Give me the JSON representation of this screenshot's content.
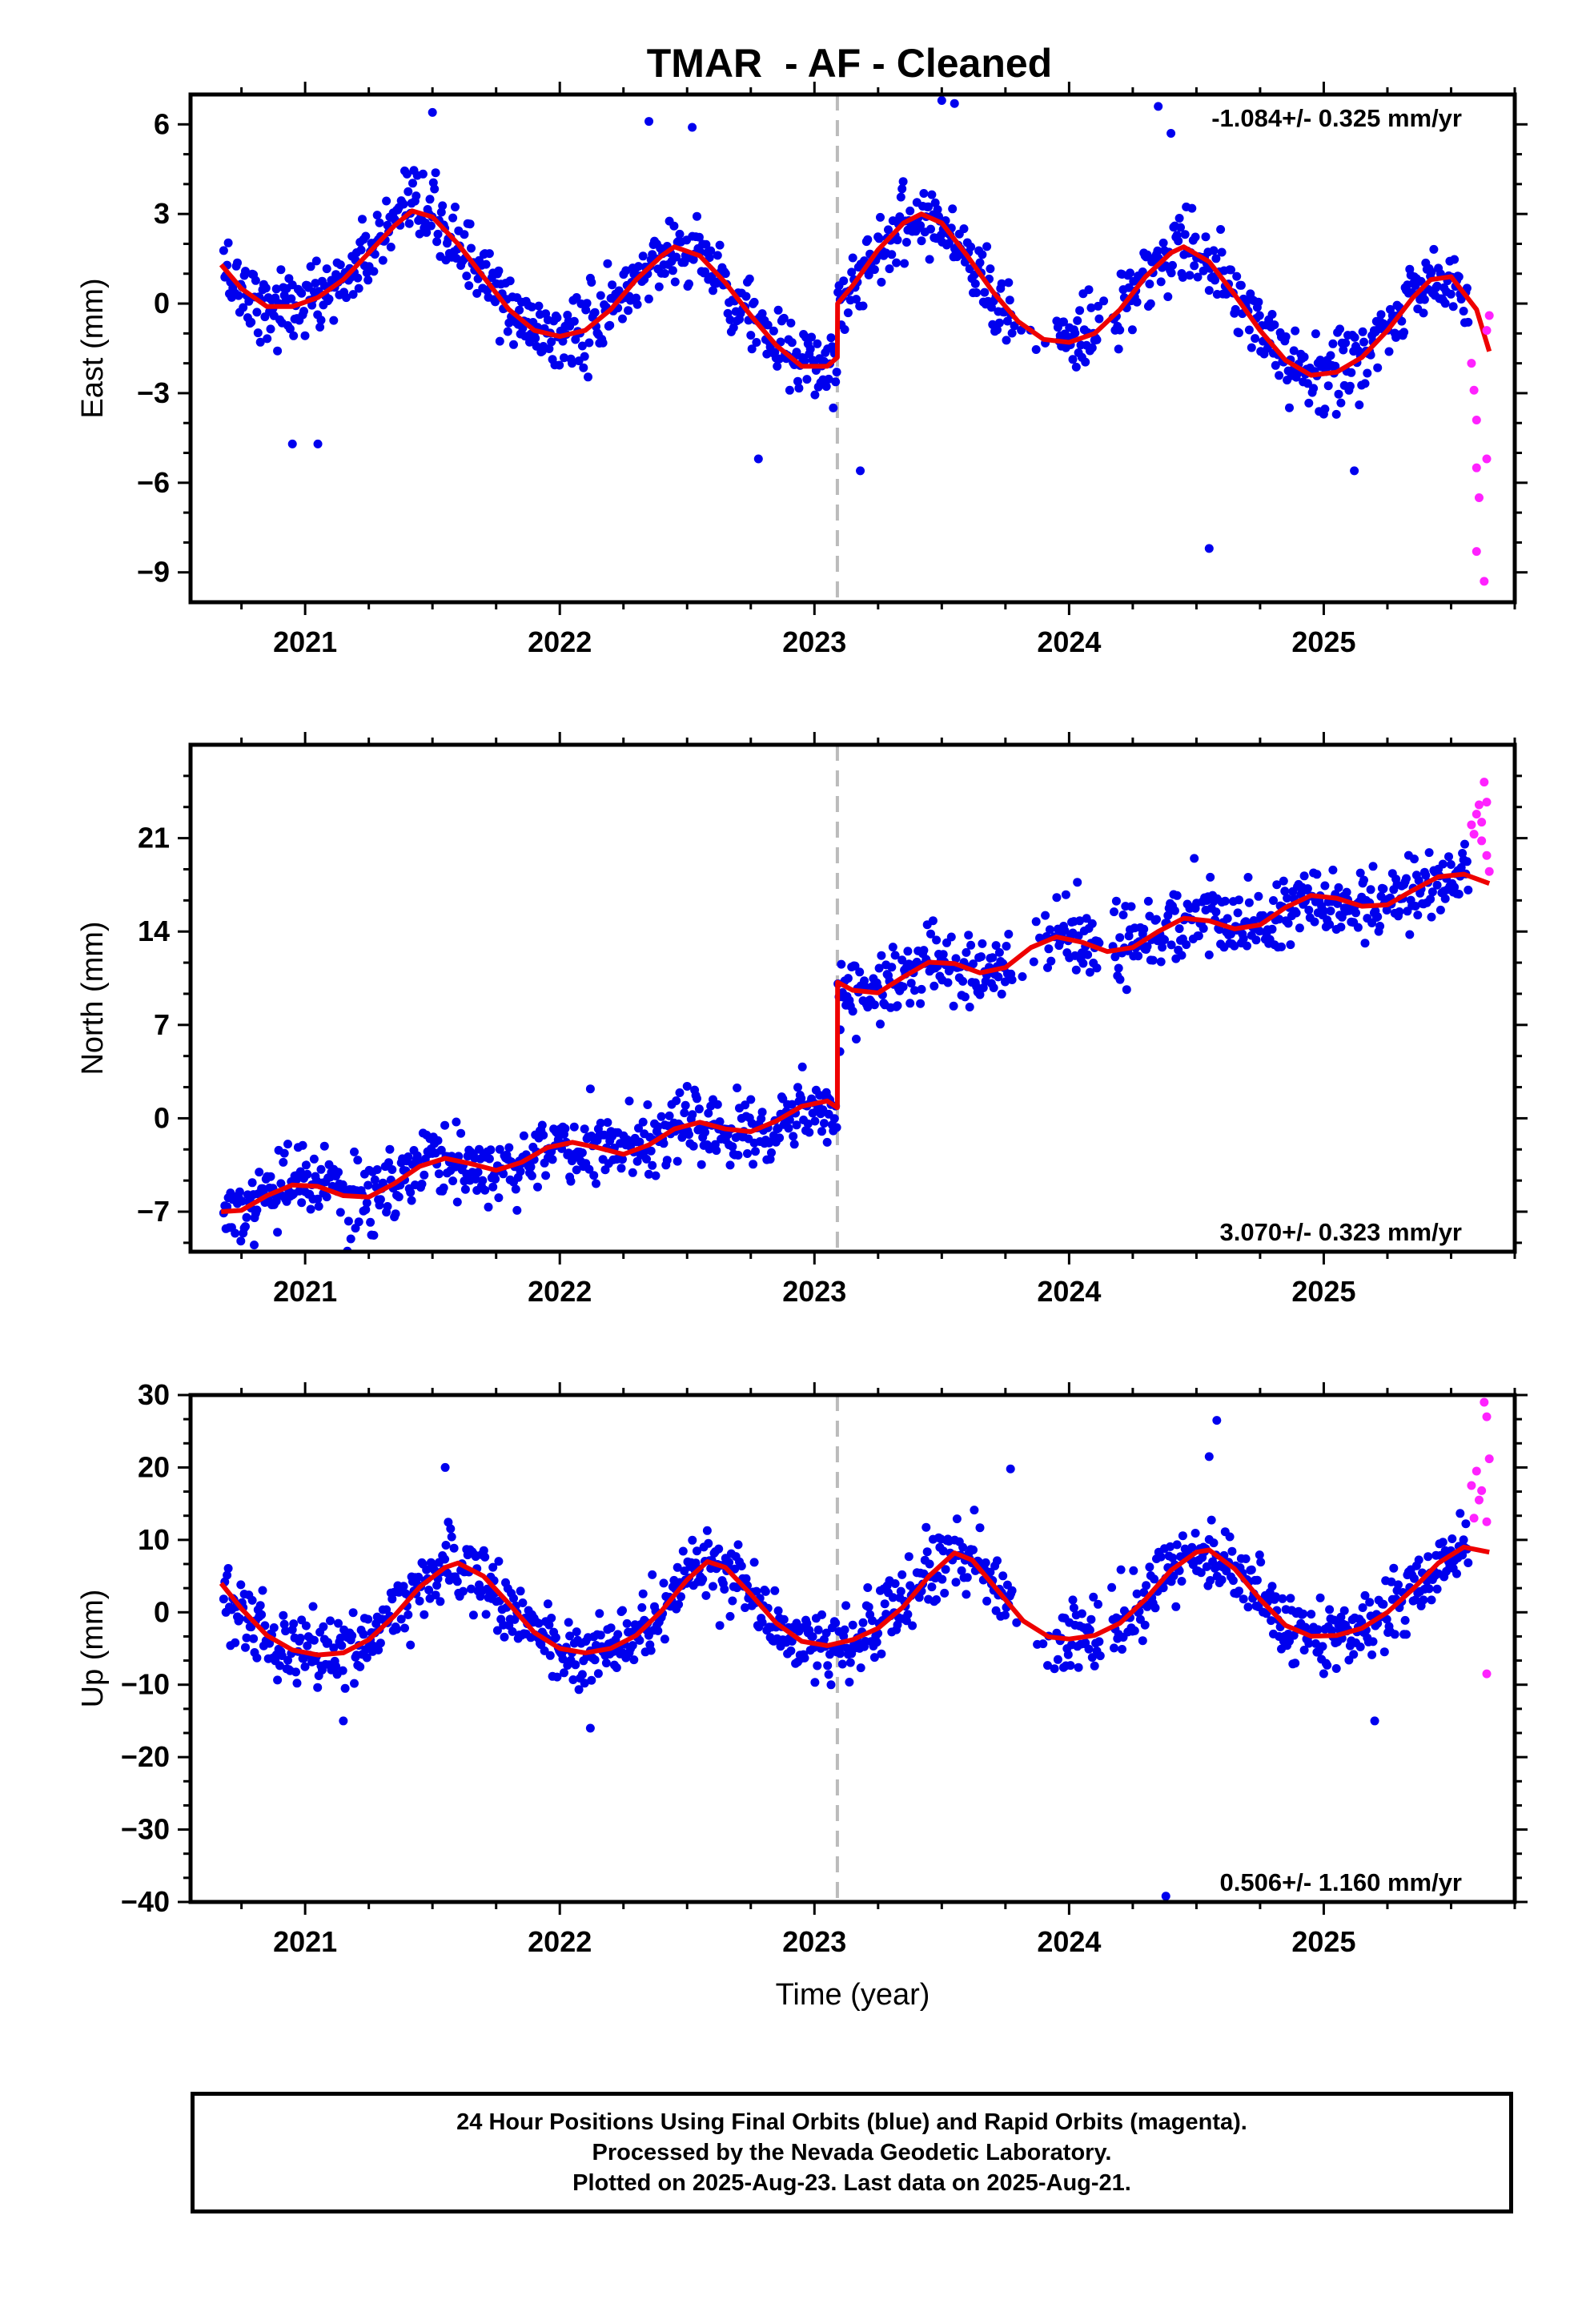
{
  "title": "TMAR  - AF - Cleaned",
  "caption": {
    "line1": "24 Hour Positions Using Final Orbits (blue) and Rapid Orbits (magenta).",
    "line2": "Processed by the Nevada Geodetic Laboratory.",
    "line3": "Plotted on 2025-Aug-23. Last data on 2025-Aug-21."
  },
  "colors": {
    "final": "#0000ee",
    "rapid": "#ff22ff",
    "model": "#ee0000",
    "event_line": "#bbbbbb"
  },
  "chart_data": [
    {
      "type": "scatter",
      "panel": "east",
      "ylabel": "East (mm)",
      "xlabel": "",
      "xlim": [
        2020.55,
        2025.75
      ],
      "ylim": [
        -10,
        7
      ],
      "xticks": [
        2021,
        2022,
        2023,
        2024,
        2025
      ],
      "xticklabels": [
        "2021",
        "2022",
        "2023",
        "2024",
        "2025"
      ],
      "yticks": [
        6,
        3,
        0,
        -3,
        -6,
        -9
      ],
      "yticklabels": [
        "6",
        "3",
        "0",
        "−3",
        "−6",
        "−9"
      ],
      "rate_text": "-1.084+/- 0.325 mm/yr",
      "rate_position": "top-right",
      "event_x": 2023.09,
      "model": [
        [
          2020.67,
          1.3
        ],
        [
          2020.75,
          0.5
        ],
        [
          2020.85,
          -0.1
        ],
        [
          2020.95,
          -0.1
        ],
        [
          2021.05,
          0.2
        ],
        [
          2021.15,
          0.8
        ],
        [
          2021.25,
          1.7
        ],
        [
          2021.35,
          2.6
        ],
        [
          2021.42,
          3.1
        ],
        [
          2021.5,
          2.9
        ],
        [
          2021.6,
          2.0
        ],
        [
          2021.7,
          0.9
        ],
        [
          2021.8,
          -0.2
        ],
        [
          2021.9,
          -0.9
        ],
        [
          2022.0,
          -1.1
        ],
        [
          2022.1,
          -0.9
        ],
        [
          2022.2,
          -0.2
        ],
        [
          2022.3,
          0.8
        ],
        [
          2022.4,
          1.6
        ],
        [
          2022.45,
          1.9
        ],
        [
          2022.55,
          1.6
        ],
        [
          2022.65,
          0.7
        ],
        [
          2022.75,
          -0.4
        ],
        [
          2022.85,
          -1.4
        ],
        [
          2022.95,
          -2.1
        ],
        [
          2023.05,
          -2.1
        ],
        [
          2023.09,
          -1.8
        ],
        [
          2023.091,
          0.0
        ],
        [
          2023.15,
          0.6
        ],
        [
          2023.25,
          1.8
        ],
        [
          2023.35,
          2.7
        ],
        [
          2023.42,
          3.0
        ],
        [
          2023.5,
          2.7
        ],
        [
          2023.6,
          1.6
        ],
        [
          2023.7,
          0.4
        ],
        [
          2023.8,
          -0.6
        ],
        [
          2023.9,
          -1.2
        ],
        [
          2024.0,
          -1.3
        ],
        [
          2024.1,
          -1.0
        ],
        [
          2024.2,
          -0.2
        ],
        [
          2024.3,
          0.9
        ],
        [
          2024.4,
          1.7
        ],
        [
          2024.45,
          1.9
        ],
        [
          2024.55,
          1.4
        ],
        [
          2024.65,
          0.3
        ],
        [
          2024.75,
          -0.9
        ],
        [
          2024.85,
          -1.9
        ],
        [
          2024.95,
          -2.4
        ],
        [
          2025.05,
          -2.3
        ],
        [
          2025.15,
          -1.8
        ],
        [
          2025.25,
          -0.9
        ],
        [
          2025.35,
          0.2
        ],
        [
          2025.42,
          0.8
        ],
        [
          2025.5,
          0.9
        ],
        [
          2025.6,
          -0.2
        ],
        [
          2025.65,
          -1.6
        ]
      ],
      "rapid": [
        [
          2025.58,
          -2.0
        ],
        [
          2025.59,
          -2.9
        ],
        [
          2025.6,
          -3.9
        ],
        [
          2025.6,
          -5.5
        ],
        [
          2025.61,
          -6.5
        ],
        [
          2025.6,
          -8.3
        ],
        [
          2025.63,
          -9.3
        ],
        [
          2025.64,
          -5.2
        ],
        [
          2025.65,
          -0.4
        ],
        [
          2025.64,
          -0.9
        ]
      ],
      "outliers": [
        [
          2021.5,
          6.4
        ],
        [
          2022.35,
          6.1
        ],
        [
          2022.52,
          5.9
        ],
        [
          2023.5,
          6.8
        ],
        [
          2023.55,
          6.7
        ],
        [
          2024.35,
          6.6
        ],
        [
          2024.4,
          5.7
        ],
        [
          2024.55,
          -8.2
        ],
        [
          2023.18,
          -5.6
        ],
        [
          2021.05,
          -4.7
        ],
        [
          2020.95,
          -4.7
        ],
        [
          2022.78,
          -5.2
        ],
        [
          2025.12,
          -5.6
        ]
      ]
    },
    {
      "type": "scatter",
      "panel": "north",
      "ylabel": "North (mm)",
      "xlabel": "",
      "xlim": [
        2020.55,
        2025.75
      ],
      "ylim": [
        -10,
        28
      ],
      "xticks": [
        2021,
        2022,
        2023,
        2024,
        2025
      ],
      "xticklabels": [
        "2021",
        "2022",
        "2023",
        "2024",
        "2025"
      ],
      "yticks": [
        21,
        14,
        7,
        0,
        -7
      ],
      "yticklabels": [
        "21",
        "14",
        "7",
        "0",
        "−7"
      ],
      "rate_text": "3.070+/- 0.323 mm/yr",
      "rate_position": "bottom-right",
      "event_x": 2023.09,
      "model": [
        [
          2020.67,
          -7.0
        ],
        [
          2020.75,
          -6.9
        ],
        [
          2020.85,
          -5.8
        ],
        [
          2020.95,
          -5.0
        ],
        [
          2021.05,
          -5.1
        ],
        [
          2021.15,
          -5.8
        ],
        [
          2021.25,
          -5.9
        ],
        [
          2021.35,
          -4.9
        ],
        [
          2021.45,
          -3.6
        ],
        [
          2021.55,
          -3.0
        ],
        [
          2021.65,
          -3.4
        ],
        [
          2021.75,
          -3.9
        ],
        [
          2021.85,
          -3.3
        ],
        [
          2021.95,
          -2.2
        ],
        [
          2022.05,
          -1.8
        ],
        [
          2022.15,
          -2.2
        ],
        [
          2022.25,
          -2.7
        ],
        [
          2022.35,
          -2.0
        ],
        [
          2022.45,
          -0.8
        ],
        [
          2022.55,
          -0.3
        ],
        [
          2022.65,
          -0.8
        ],
        [
          2022.75,
          -1.0
        ],
        [
          2022.85,
          -0.2
        ],
        [
          2022.95,
          0.9
        ],
        [
          2023.05,
          1.3
        ],
        [
          2023.09,
          0.8
        ],
        [
          2023.091,
          10.2
        ],
        [
          2023.15,
          9.6
        ],
        [
          2023.25,
          9.4
        ],
        [
          2023.35,
          10.6
        ],
        [
          2023.45,
          11.7
        ],
        [
          2023.55,
          11.6
        ],
        [
          2023.65,
          10.9
        ],
        [
          2023.75,
          11.3
        ],
        [
          2023.85,
          12.8
        ],
        [
          2023.95,
          13.6
        ],
        [
          2024.05,
          13.2
        ],
        [
          2024.15,
          12.5
        ],
        [
          2024.25,
          12.8
        ],
        [
          2024.35,
          14.0
        ],
        [
          2024.45,
          15.0
        ],
        [
          2024.55,
          14.8
        ],
        [
          2024.65,
          14.2
        ],
        [
          2024.75,
          14.5
        ],
        [
          2024.85,
          15.8
        ],
        [
          2024.95,
          16.7
        ],
        [
          2025.05,
          16.5
        ],
        [
          2025.15,
          15.9
        ],
        [
          2025.25,
          16.0
        ],
        [
          2025.35,
          17.1
        ],
        [
          2025.45,
          18.1
        ],
        [
          2025.55,
          18.3
        ],
        [
          2025.65,
          17.6
        ]
      ],
      "rapid": [
        [
          2025.58,
          22.0
        ],
        [
          2025.59,
          21.3
        ],
        [
          2025.6,
          22.8
        ],
        [
          2025.61,
          23.5
        ],
        [
          2025.62,
          22.2
        ],
        [
          2025.63,
          25.2
        ],
        [
          2025.64,
          23.7
        ],
        [
          2025.64,
          19.7
        ],
        [
          2025.65,
          18.5
        ],
        [
          2025.62,
          20.8
        ]
      ],
      "outliers": [
        [
          2020.8,
          -9.5
        ],
        [
          2023.05,
          -1.8
        ],
        [
          2023.1,
          5.0
        ],
        [
          2024.2,
          10.4
        ],
        [
          2022.5,
          2.4
        ]
      ]
    },
    {
      "type": "scatter",
      "panel": "up",
      "ylabel": "Up (mm)",
      "xlabel": "Time (year)",
      "xlim": [
        2020.55,
        2025.75
      ],
      "ylim": [
        -40,
        30
      ],
      "xticks": [
        2021,
        2022,
        2023,
        2024,
        2025
      ],
      "xticklabels": [
        "2021",
        "2022",
        "2023",
        "2024",
        "2025"
      ],
      "yticks": [
        30,
        20,
        10,
        0,
        -10,
        -20,
        -30,
        -40
      ],
      "yticklabels": [
        "30",
        "20",
        "10",
        "0",
        "−10",
        "−20",
        "−30",
        "−40"
      ],
      "rate_text": "0.506+/- 1.160 mm/yr",
      "rate_position": "bottom-right",
      "event_x": 2023.09,
      "model": [
        [
          2020.67,
          4.0
        ],
        [
          2020.75,
          0.5
        ],
        [
          2020.85,
          -3.2
        ],
        [
          2020.95,
          -5.2
        ],
        [
          2021.05,
          -5.9
        ],
        [
          2021.15,
          -5.6
        ],
        [
          2021.25,
          -3.8
        ],
        [
          2021.35,
          -0.5
        ],
        [
          2021.45,
          3.5
        ],
        [
          2021.55,
          6.2
        ],
        [
          2021.6,
          6.8
        ],
        [
          2021.7,
          5.0
        ],
        [
          2021.8,
          1.2
        ],
        [
          2021.9,
          -2.8
        ],
        [
          2022.0,
          -5.0
        ],
        [
          2022.1,
          -5.6
        ],
        [
          2022.2,
          -5.0
        ],
        [
          2022.3,
          -3.2
        ],
        [
          2022.4,
          0.2
        ],
        [
          2022.5,
          4.5
        ],
        [
          2022.58,
          7.0
        ],
        [
          2022.65,
          6.2
        ],
        [
          2022.75,
          2.5
        ],
        [
          2022.85,
          -1.5
        ],
        [
          2022.95,
          -4.0
        ],
        [
          2023.05,
          -4.6
        ],
        [
          2023.15,
          -3.8
        ],
        [
          2023.25,
          -2.2
        ],
        [
          2023.35,
          0.8
        ],
        [
          2023.45,
          5.0
        ],
        [
          2023.55,
          8.2
        ],
        [
          2023.62,
          7.2
        ],
        [
          2023.72,
          3.0
        ],
        [
          2023.82,
          -1.2
        ],
        [
          2023.92,
          -3.4
        ],
        [
          2024.0,
          -3.7
        ],
        [
          2024.1,
          -3.2
        ],
        [
          2024.2,
          -1.5
        ],
        [
          2024.3,
          1.8
        ],
        [
          2024.4,
          5.8
        ],
        [
          2024.5,
          8.3
        ],
        [
          2024.55,
          8.6
        ],
        [
          2024.65,
          6.0
        ],
        [
          2024.75,
          1.8
        ],
        [
          2024.85,
          -1.8
        ],
        [
          2024.95,
          -3.3
        ],
        [
          2025.05,
          -3.2
        ],
        [
          2025.15,
          -2.2
        ],
        [
          2025.25,
          0.0
        ],
        [
          2025.35,
          3.2
        ],
        [
          2025.45,
          6.8
        ],
        [
          2025.55,
          9.0
        ],
        [
          2025.65,
          8.3
        ]
      ],
      "rapid": [
        [
          2025.58,
          17.5
        ],
        [
          2025.59,
          13.0
        ],
        [
          2025.6,
          19.5
        ],
        [
          2025.61,
          15.5
        ],
        [
          2025.62,
          16.8
        ],
        [
          2025.63,
          29.0
        ],
        [
          2025.64,
          27.0
        ],
        [
          2025.64,
          12.5
        ],
        [
          2025.65,
          21.2
        ],
        [
          2025.64,
          -8.5
        ]
      ],
      "outliers": [
        [
          2024.38,
          -39.2
        ],
        [
          2024.58,
          26.5
        ],
        [
          2021.55,
          20.0
        ],
        [
          2025.2,
          -15.0
        ],
        [
          2022.12,
          -16.0
        ],
        [
          2023.77,
          19.8
        ],
        [
          2024.55,
          21.5
        ],
        [
          2021.15,
          -15.0
        ]
      ]
    }
  ]
}
